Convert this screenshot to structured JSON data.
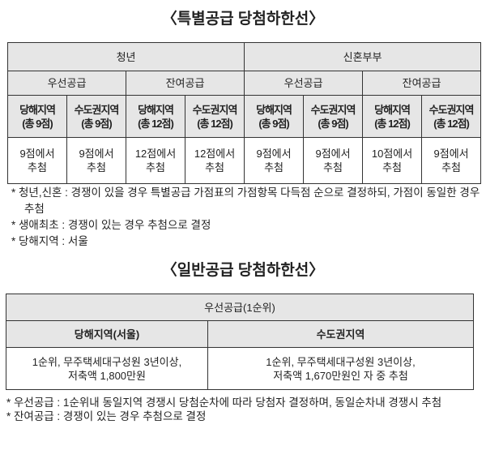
{
  "special": {
    "title": "〈특별공급 당첨하한선〉",
    "groups": [
      "청년",
      "신혼부부"
    ],
    "types": [
      "우선공급",
      "잔여공급",
      "우선공급",
      "잔여공급"
    ],
    "regions": [
      [
        "당해지역",
        "(총 9점)"
      ],
      [
        "수도권지역",
        "(총 9점)"
      ],
      [
        "당해지역",
        "(총 12점)"
      ],
      [
        "수도권지역",
        "(총 12점)"
      ],
      [
        "당해지역",
        "(총 9점)"
      ],
      [
        "수도권지역",
        "(총 9점)"
      ],
      [
        "당해지역",
        "(총 12점)"
      ],
      [
        "수도권지역",
        "(총 12점)"
      ]
    ],
    "values": [
      [
        "9점에서",
        "추첨"
      ],
      [
        "9점에서",
        "추첨"
      ],
      [
        "12점에서",
        "추첨"
      ],
      [
        "12점에서",
        "추첨"
      ],
      [
        "9점에서",
        "추첨"
      ],
      [
        "9점에서",
        "추첨"
      ],
      [
        "10점에서",
        "추첨"
      ],
      [
        "9점에서",
        "추첨"
      ]
    ],
    "notes": [
      "* 청년,신혼 : 경쟁이 있을 경우 특별공급 가점표의 가점항목 다득점 순으로 결정하되, 가점이 동일한 경우 추첨",
      "* 생애최초 : 경쟁이 있는 경우 추첨으로 결정",
      "* 당해지역 : 서울"
    ]
  },
  "general": {
    "title": "〈일반공급 당첨하한선〉",
    "header": "우선공급(1순위)",
    "regions": [
      "당해지역(서울)",
      "수도권지역"
    ],
    "values": [
      [
        "1순위, 무주택세대구성원 3년이상,",
        "저축액 1,800만원"
      ],
      [
        "1순위, 무주택세대구성원 3년이상,",
        "저축액 1,670만원인 자 중 추첨"
      ]
    ],
    "notes": [
      "* 우선공급 : 1순위내 동일지역 경쟁시 당첨순차에 따라 당첨자 결정하며, 동일순차내 경쟁시 추첨",
      "* 잔여공급 : 경쟁이 있는 경우 추첨으로 결정"
    ]
  }
}
